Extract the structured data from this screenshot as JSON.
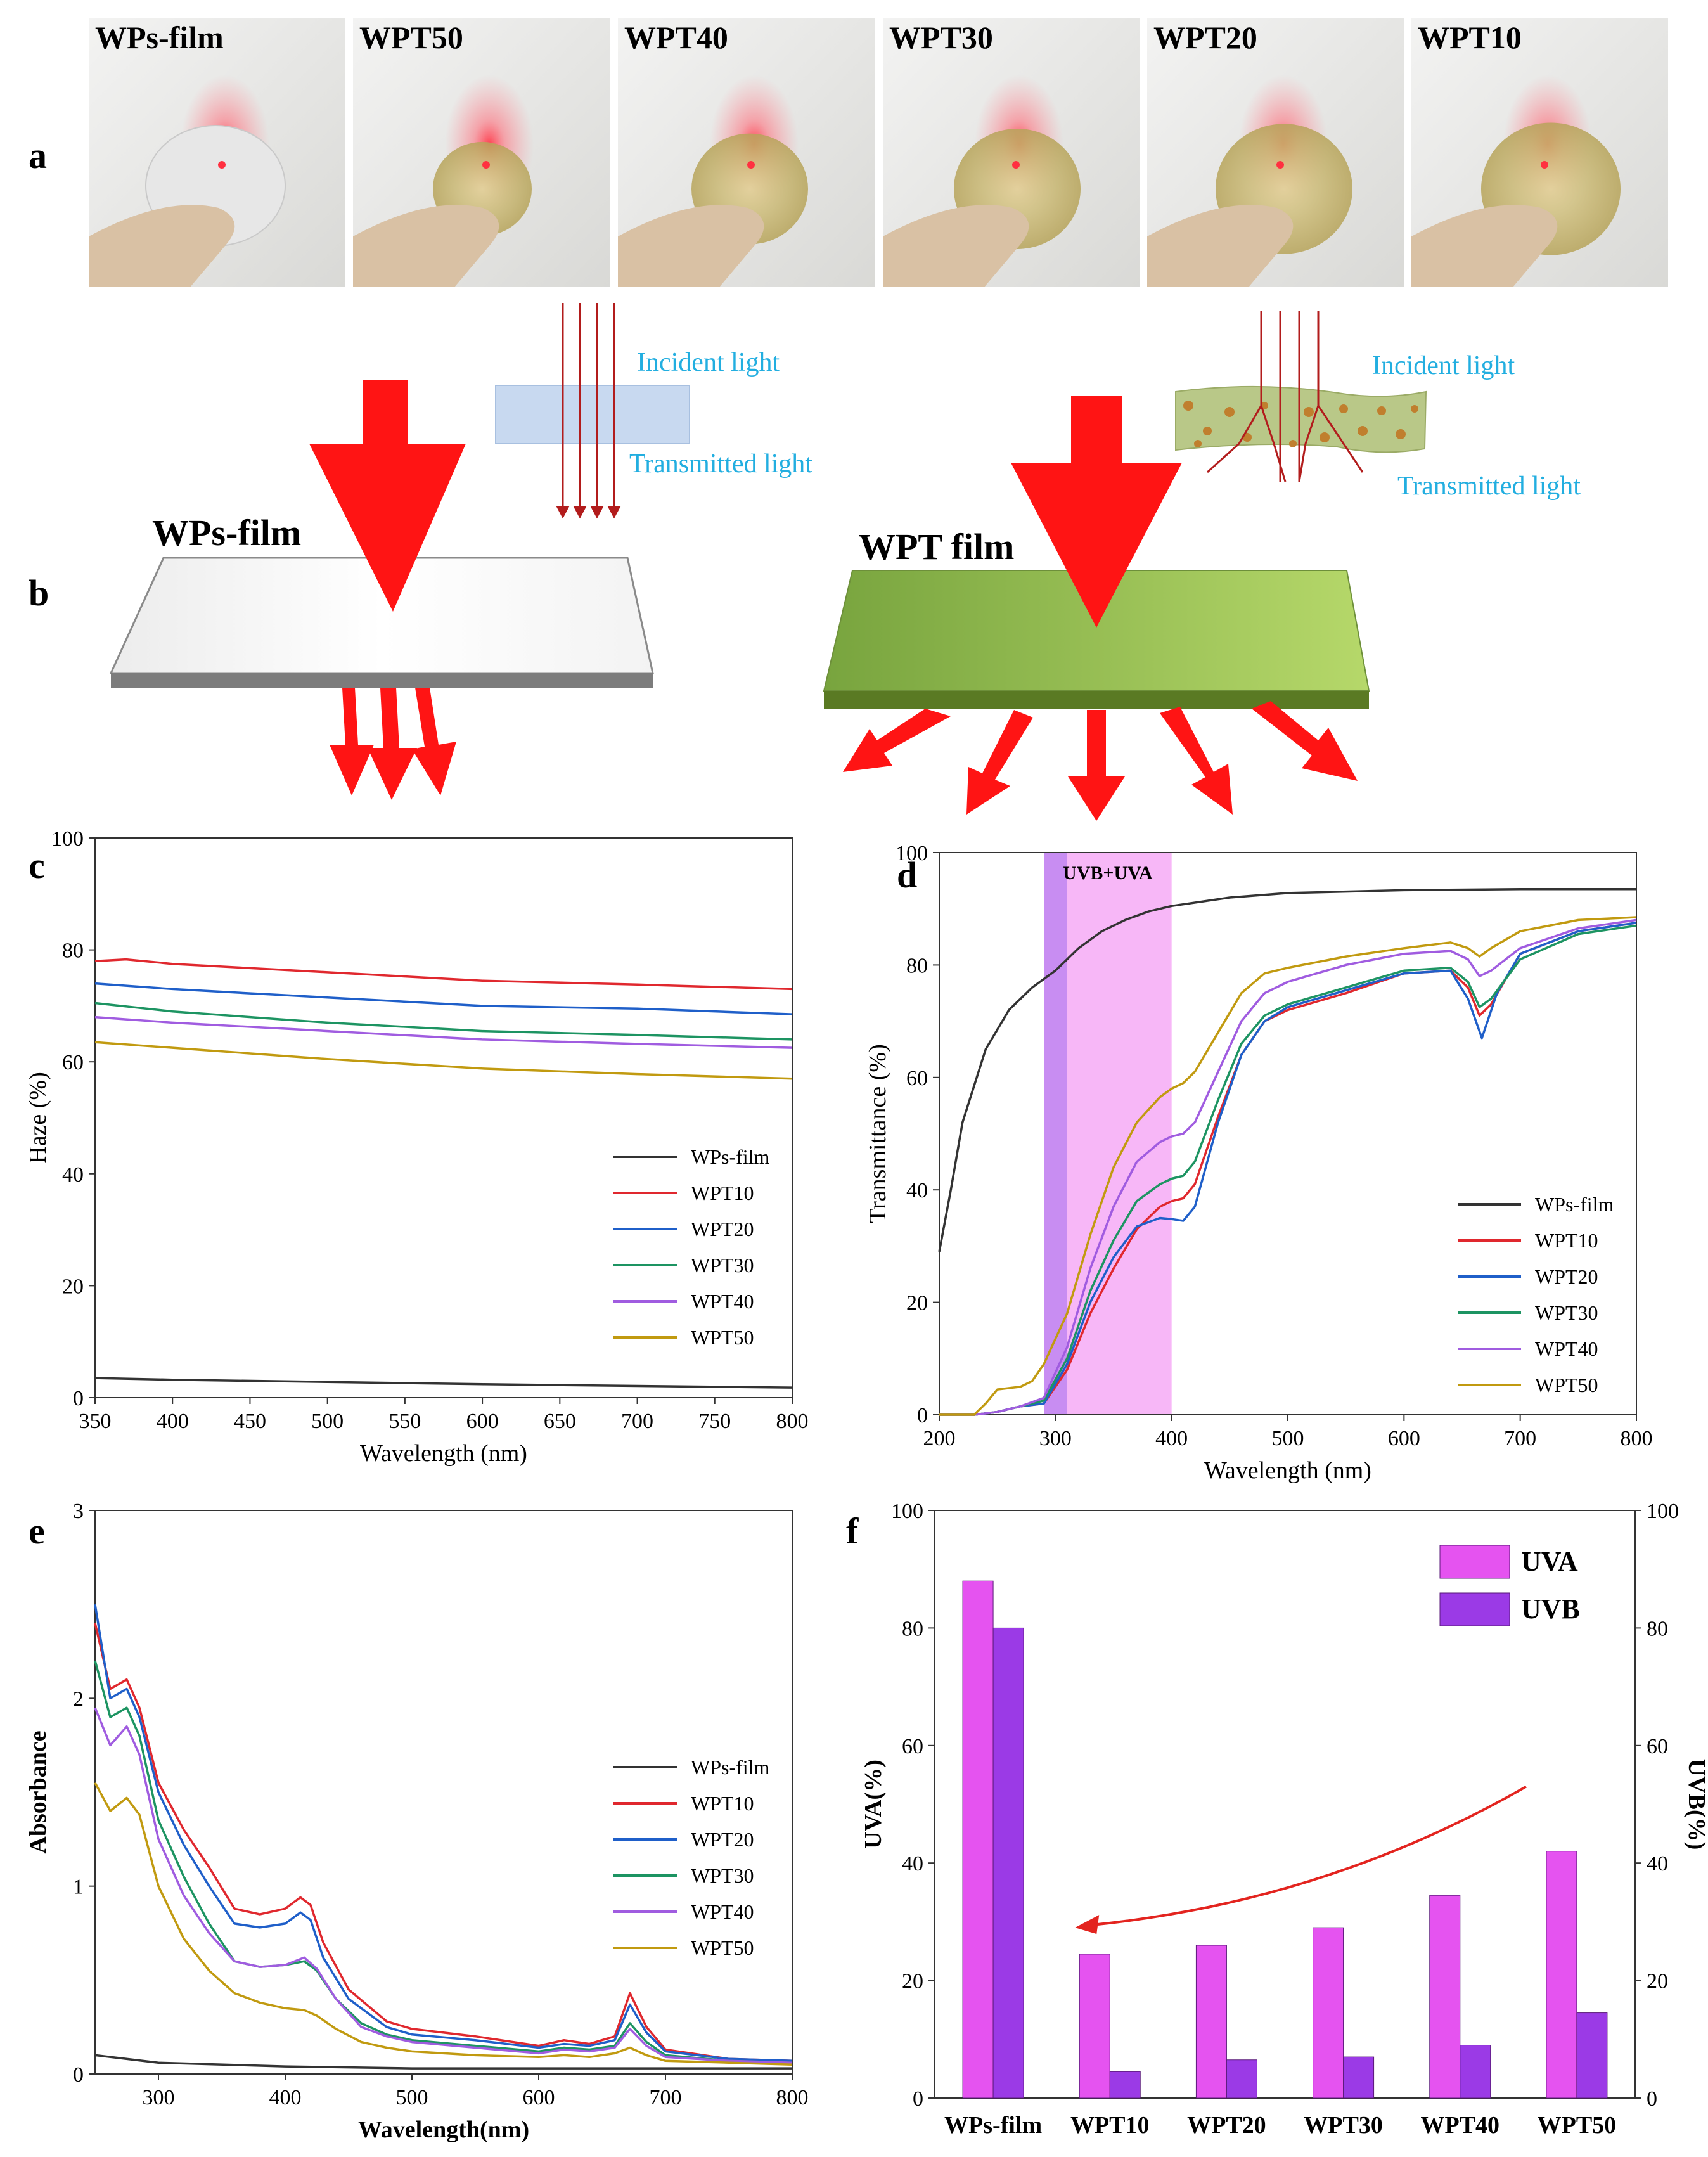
{
  "panel_letters": [
    "a",
    "b",
    "c",
    "d",
    "e",
    "f"
  ],
  "photos": [
    "WPs-film",
    "WPT50",
    "WPT40",
    "WPT30",
    "WPT20",
    "WPT10"
  ],
  "schematic": {
    "left_label": "WPs-film",
    "right_label": "WPT film",
    "incident": "Incident light",
    "transmitted": "Transmitted light"
  },
  "colors": {
    "WPs-film": "#333333",
    "WPT10": "#e0282e",
    "WPT20": "#1f5fc9",
    "WPT30": "#1d9462",
    "WPT40": "#a05ce0",
    "WPT50": "#c19a10",
    "UVA": "#e553f0",
    "UVB": "#9b3ae6"
  },
  "series_names": [
    "WPs-film",
    "WPT10",
    "WPT20",
    "WPT30",
    "WPT40",
    "WPT50"
  ],
  "chart_data": [
    {
      "id": "c",
      "type": "line",
      "xlabel": "Wavelength (nm)",
      "ylabel": "Haze (%)",
      "xlim": [
        350,
        800
      ],
      "ylim": [
        0,
        100
      ],
      "xticks": [
        350,
        400,
        450,
        500,
        550,
        600,
        650,
        700,
        750,
        800
      ],
      "yticks": [
        0,
        20,
        40,
        60,
        80,
        100
      ],
      "series": [
        {
          "name": "WPs-film",
          "x": [
            350,
            400,
            500,
            600,
            700,
            800
          ],
          "y": [
            3.5,
            3.2,
            2.8,
            2.4,
            2.1,
            1.8
          ]
        },
        {
          "name": "WPT10",
          "x": [
            350,
            370,
            400,
            500,
            600,
            700,
            800
          ],
          "y": [
            78,
            78.3,
            77.5,
            76,
            74.5,
            73.8,
            73
          ]
        },
        {
          "name": "WPT20",
          "x": [
            350,
            400,
            500,
            600,
            700,
            800
          ],
          "y": [
            74,
            73,
            71.5,
            70,
            69.5,
            68.5
          ]
        },
        {
          "name": "WPT30",
          "x": [
            350,
            400,
            500,
            600,
            700,
            800
          ],
          "y": [
            70.5,
            69,
            67,
            65.5,
            64.8,
            64
          ]
        },
        {
          "name": "WPT40",
          "x": [
            350,
            400,
            500,
            600,
            700,
            800
          ],
          "y": [
            68,
            67,
            65.5,
            64,
            63.2,
            62.5
          ]
        },
        {
          "name": "WPT50",
          "x": [
            350,
            400,
            500,
            600,
            700,
            800
          ],
          "y": [
            63.5,
            62.5,
            60.5,
            58.8,
            57.8,
            57
          ]
        }
      ]
    },
    {
      "id": "d",
      "type": "line",
      "xlabel": "Wavelength (nm)",
      "ylabel": "Transmittance (%)",
      "xlim": [
        200,
        800
      ],
      "ylim": [
        0,
        100
      ],
      "xticks": [
        200,
        300,
        400,
        500,
        600,
        700,
        800
      ],
      "yticks": [
        0,
        20,
        40,
        60,
        80,
        100
      ],
      "band_label": "UVB+UVA",
      "bands": [
        {
          "name": "UVB",
          "from": 290,
          "to": 310
        },
        {
          "name": "UVA",
          "from": 310,
          "to": 400
        }
      ],
      "series": [
        {
          "name": "WPs-film",
          "x": [
            200,
            210,
            220,
            240,
            260,
            280,
            300,
            320,
            340,
            360,
            380,
            400,
            450,
            500,
            600,
            700,
            800
          ],
          "y": [
            29,
            40,
            52,
            65,
            72,
            76,
            79,
            83,
            86,
            88,
            89.5,
            90.5,
            92,
            92.8,
            93.3,
            93.5,
            93.5
          ]
        },
        {
          "name": "WPT10",
          "x": [
            200,
            230,
            250,
            270,
            290,
            310,
            330,
            350,
            370,
            390,
            400,
            410,
            420,
            440,
            460,
            480,
            500,
            550,
            600,
            640,
            655,
            665,
            675,
            700,
            750,
            800
          ],
          "y": [
            0,
            0,
            0.5,
            1.5,
            2,
            8,
            18,
            26,
            33,
            37,
            38,
            38.5,
            41,
            53,
            64,
            70,
            72,
            75,
            78.5,
            79,
            76,
            71,
            73,
            82,
            86,
            87.5
          ]
        },
        {
          "name": "WPT20",
          "x": [
            200,
            230,
            250,
            270,
            290,
            310,
            330,
            350,
            370,
            390,
            400,
            410,
            420,
            440,
            460,
            480,
            500,
            550,
            600,
            640,
            655,
            667,
            680,
            700,
            750,
            800
          ],
          "y": [
            0,
            0,
            0.5,
            1.5,
            2,
            9,
            20,
            28,
            33.5,
            35,
            34.8,
            34.5,
            37,
            52,
            64,
            70,
            72.5,
            75.5,
            78.5,
            79,
            74,
            67,
            75,
            82,
            86,
            87.5
          ]
        },
        {
          "name": "WPT30",
          "x": [
            200,
            230,
            250,
            270,
            290,
            310,
            330,
            350,
            370,
            390,
            400,
            410,
            420,
            440,
            460,
            480,
            500,
            550,
            600,
            640,
            655,
            665,
            675,
            700,
            750,
            800
          ],
          "y": [
            0,
            0,
            0.5,
            1.5,
            2.5,
            10,
            22,
            31,
            38,
            41,
            42,
            42.5,
            45,
            56,
            66,
            71,
            73,
            76,
            79,
            79.5,
            77,
            72.5,
            74,
            81,
            85.5,
            87
          ]
        },
        {
          "name": "WPT40",
          "x": [
            200,
            230,
            250,
            270,
            290,
            310,
            330,
            350,
            370,
            390,
            400,
            410,
            420,
            440,
            460,
            480,
            500,
            550,
            600,
            640,
            655,
            665,
            675,
            700,
            750,
            800
          ],
          "y": [
            0,
            0,
            0.5,
            1.5,
            3,
            12,
            26,
            37,
            45,
            48.5,
            49.5,
            50,
            52,
            61,
            70,
            75,
            77,
            80,
            82,
            82.5,
            81,
            78,
            79,
            83,
            86.5,
            88
          ]
        },
        {
          "name": "WPT50",
          "x": [
            200,
            230,
            240,
            250,
            270,
            280,
            290,
            310,
            330,
            350,
            370,
            390,
            400,
            410,
            420,
            440,
            460,
            480,
            500,
            550,
            600,
            640,
            655,
            665,
            675,
            700,
            750,
            800
          ],
          "y": [
            0,
            0,
            2,
            4.5,
            5,
            6,
            9,
            18,
            32,
            44,
            52,
            56.5,
            58,
            59,
            61,
            68,
            75,
            78.5,
            79.5,
            81.5,
            83,
            84,
            83,
            81.5,
            83,
            86,
            88,
            88.5
          ]
        }
      ]
    },
    {
      "id": "e",
      "type": "line",
      "xlabel": "Wavelength(nm)",
      "ylabel": "Absorbance",
      "xlim": [
        250,
        800
      ],
      "ylim": [
        0,
        3
      ],
      "xticks": [
        300,
        400,
        500,
        600,
        700,
        800
      ],
      "yticks": [
        0,
        1,
        2,
        3
      ],
      "series": [
        {
          "name": "WPs-film",
          "x": [
            250,
            300,
            400,
            500,
            600,
            700,
            800
          ],
          "y": [
            0.1,
            0.06,
            0.04,
            0.03,
            0.03,
            0.03,
            0.03
          ]
        },
        {
          "name": "WPT10",
          "x": [
            250,
            262,
            275,
            285,
            300,
            320,
            340,
            360,
            380,
            400,
            412,
            420,
            430,
            450,
            480,
            500,
            550,
            600,
            620,
            640,
            660,
            672,
            685,
            700,
            750,
            800
          ],
          "y": [
            2.4,
            2.05,
            2.1,
            1.95,
            1.55,
            1.3,
            1.1,
            0.88,
            0.85,
            0.88,
            0.94,
            0.9,
            0.7,
            0.45,
            0.28,
            0.24,
            0.2,
            0.15,
            0.18,
            0.16,
            0.2,
            0.43,
            0.25,
            0.13,
            0.08,
            0.07
          ]
        },
        {
          "name": "WPT20",
          "x": [
            250,
            262,
            275,
            285,
            300,
            320,
            340,
            360,
            380,
            400,
            412,
            420,
            430,
            450,
            480,
            500,
            550,
            600,
            620,
            640,
            660,
            672,
            685,
            700,
            750,
            800
          ],
          "y": [
            2.5,
            2.0,
            2.05,
            1.9,
            1.5,
            1.22,
            1.0,
            0.8,
            0.78,
            0.8,
            0.86,
            0.82,
            0.62,
            0.4,
            0.25,
            0.21,
            0.18,
            0.14,
            0.16,
            0.15,
            0.18,
            0.37,
            0.22,
            0.12,
            0.08,
            0.07
          ]
        },
        {
          "name": "WPT30",
          "x": [
            250,
            262,
            275,
            285,
            300,
            320,
            340,
            360,
            380,
            400,
            415,
            425,
            440,
            460,
            480,
            500,
            550,
            600,
            620,
            640,
            660,
            672,
            685,
            700,
            750,
            800
          ],
          "y": [
            2.2,
            1.9,
            1.95,
            1.8,
            1.35,
            1.05,
            0.8,
            0.6,
            0.57,
            0.58,
            0.6,
            0.55,
            0.4,
            0.27,
            0.21,
            0.18,
            0.15,
            0.12,
            0.14,
            0.13,
            0.15,
            0.27,
            0.17,
            0.1,
            0.07,
            0.06
          ]
        },
        {
          "name": "WPT40",
          "x": [
            250,
            262,
            275,
            285,
            300,
            320,
            340,
            360,
            380,
            400,
            415,
            425,
            440,
            460,
            480,
            500,
            550,
            600,
            620,
            640,
            660,
            672,
            685,
            700,
            750,
            800
          ],
          "y": [
            1.95,
            1.75,
            1.85,
            1.7,
            1.25,
            0.95,
            0.75,
            0.6,
            0.57,
            0.58,
            0.62,
            0.56,
            0.4,
            0.25,
            0.2,
            0.17,
            0.14,
            0.11,
            0.13,
            0.12,
            0.14,
            0.24,
            0.15,
            0.09,
            0.07,
            0.06
          ]
        },
        {
          "name": "WPT50",
          "x": [
            250,
            262,
            275,
            285,
            300,
            320,
            340,
            360,
            380,
            400,
            415,
            425,
            440,
            460,
            480,
            500,
            550,
            600,
            620,
            640,
            660,
            672,
            685,
            700,
            750,
            800
          ],
          "y": [
            1.55,
            1.4,
            1.47,
            1.38,
            1.0,
            0.72,
            0.55,
            0.43,
            0.38,
            0.35,
            0.34,
            0.31,
            0.24,
            0.17,
            0.14,
            0.12,
            0.1,
            0.09,
            0.1,
            0.09,
            0.11,
            0.14,
            0.1,
            0.07,
            0.06,
            0.05
          ]
        }
      ]
    },
    {
      "id": "f",
      "type": "bar",
      "categories": [
        "WPs-film",
        "WPT10",
        "WPT20",
        "WPT30",
        "WPT40",
        "WPT50"
      ],
      "ylabel": "UVA(%)",
      "y2label": "UVB(%)",
      "ylim": [
        0,
        100
      ],
      "y2lim": [
        0,
        100
      ],
      "yticks": [
        0,
        20,
        40,
        60,
        80,
        100
      ],
      "series": [
        {
          "name": "UVA",
          "values": [
            88,
            24.5,
            26,
            29,
            34.5,
            42
          ]
        },
        {
          "name": "UVB",
          "values": [
            80,
            4.5,
            6.5,
            7,
            9,
            14.5
          ]
        }
      ]
    }
  ]
}
